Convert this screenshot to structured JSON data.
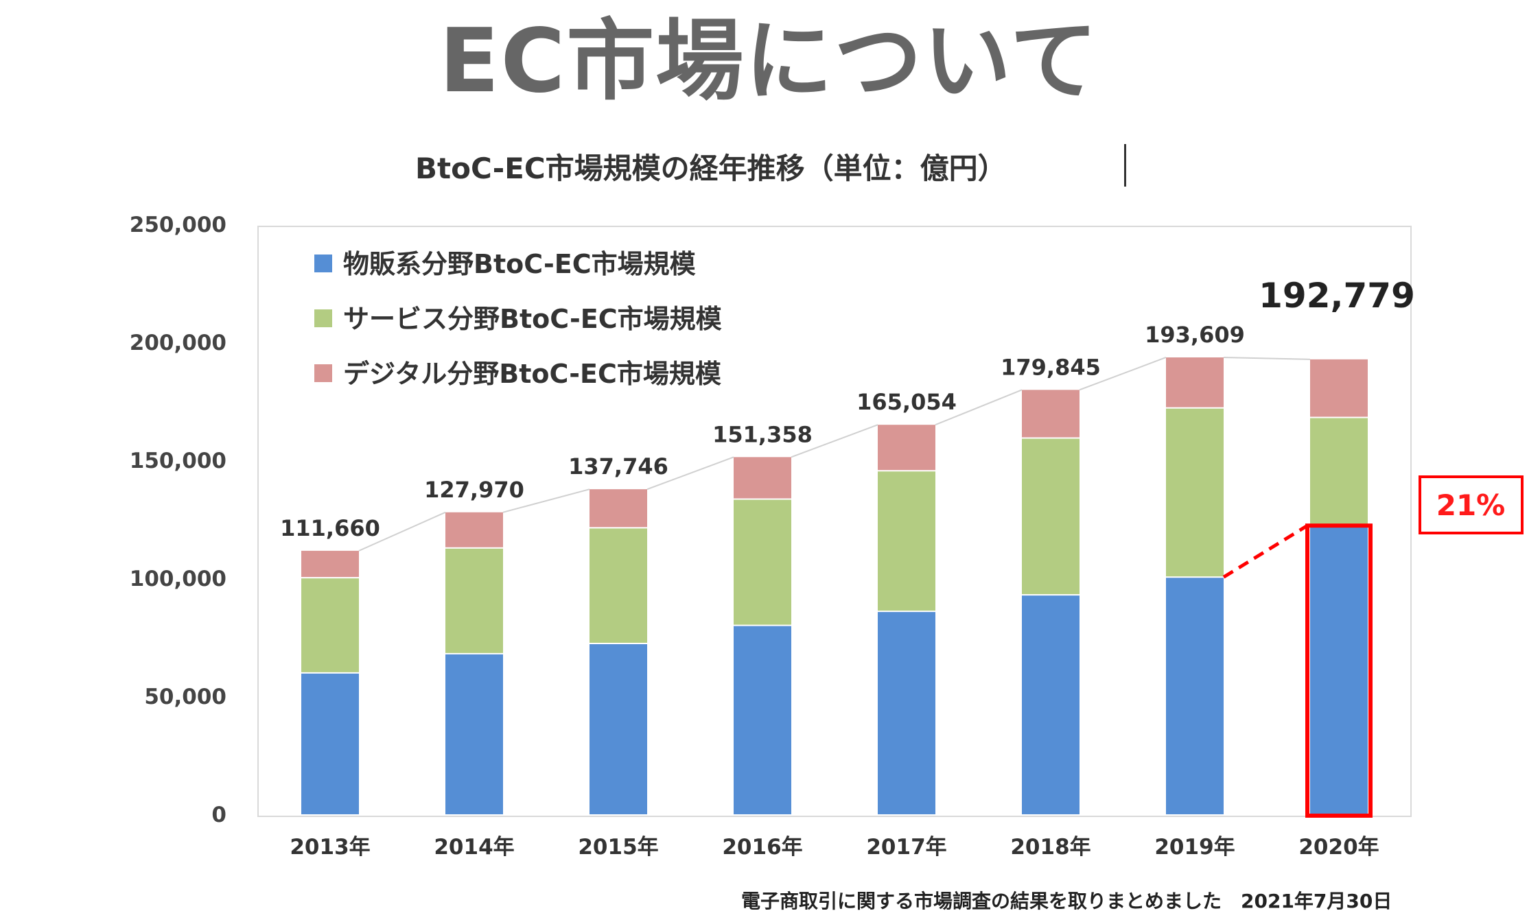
{
  "page": {
    "title": "EC市場について",
    "source_note": "電子商取引に関する市場調査の結果を取りまとめました　2021年7月30日"
  },
  "chart_data": {
    "type": "bar",
    "stacked": true,
    "title": "BtoC-EC市場規模の経年推移（単位：億円）",
    "categories": [
      "2013年",
      "2014年",
      "2015年",
      "2016年",
      "2017年",
      "2018年",
      "2019年",
      "2020年"
    ],
    "series": [
      {
        "name": "物販系分野BtoC-EC市場規模",
        "color": "#558ed5",
        "values": [
          59931,
          68043,
          72398,
          80043,
          86008,
          92992,
          100515,
          122333
        ]
      },
      {
        "name": "サービス分野BtoC-EC市場規模",
        "color": "#b3cc82",
        "values": [
          40309,
          44816,
          49014,
          53532,
          59568,
          66471,
          71672,
          45832
        ]
      },
      {
        "name": "デジタル分野BtoC-EC市場規模",
        "color": "#d99694",
        "values": [
          11420,
          15111,
          16334,
          17783,
          19478,
          20382,
          21422,
          24614
        ]
      }
    ],
    "totals": [
      "111,660",
      "127,970",
      "137,746",
      "151,358",
      "165,054",
      "179,845",
      "193,609",
      "192,779"
    ],
    "highlight": {
      "category": "2020年",
      "total": "192,779",
      "growth_label": "21%",
      "color": "#ff0000"
    },
    "y_ticks": [
      "0",
      "50,000",
      "100,000",
      "150,000",
      "200,000",
      "250,000"
    ],
    "ylim": [
      0,
      250000
    ],
    "legend_position": "top-left"
  }
}
